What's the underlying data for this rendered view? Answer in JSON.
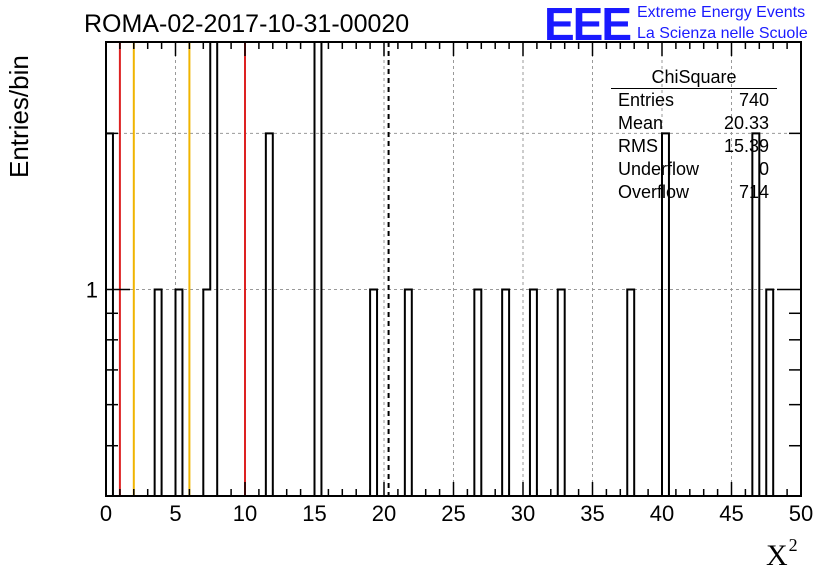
{
  "chart_data": {
    "type": "histogram",
    "title": "ROMA-02-2017-10-31-00020",
    "xlabel": "X",
    "xlabel_superscript": "2",
    "ylabel": "Entries/bin",
    "xlim": [
      0,
      50
    ],
    "ylim": [
      0.4,
      3
    ],
    "yscale": "log",
    "grid": true,
    "bin_width": 0.5,
    "x_ticks": [
      "0",
      "5",
      "10",
      "15",
      "20",
      "25",
      "30",
      "35",
      "40",
      "45",
      "50"
    ],
    "y_ticks": [
      "1"
    ],
    "bins": [
      {
        "x": 0.0,
        "y": 2
      },
      {
        "x": 3.5,
        "y": 1
      },
      {
        "x": 5.0,
        "y": 1
      },
      {
        "x": 7.0,
        "y": 1
      },
      {
        "x": 7.5,
        "y": 3
      },
      {
        "x": 11.5,
        "y": 2
      },
      {
        "x": 15.0,
        "y": 3
      },
      {
        "x": 19.0,
        "y": 1
      },
      {
        "x": 21.5,
        "y": 1
      },
      {
        "x": 26.5,
        "y": 1
      },
      {
        "x": 28.5,
        "y": 1
      },
      {
        "x": 30.5,
        "y": 1
      },
      {
        "x": 32.5,
        "y": 1
      },
      {
        "x": 37.5,
        "y": 1
      },
      {
        "x": 40.0,
        "y": 2
      },
      {
        "x": 46.5,
        "y": 2
      },
      {
        "x": 47.5,
        "y": 1
      }
    ],
    "vlines": [
      {
        "x": 1,
        "color": "#dd2222"
      },
      {
        "x": 2,
        "color": "#f0b400"
      },
      {
        "x": 6,
        "color": "#f0b400"
      },
      {
        "x": 10,
        "color": "#dd2222"
      },
      {
        "x": 20.33,
        "color": "#000000",
        "dashed": true
      }
    ],
    "stats_box": {
      "title": "ChiSquare",
      "rows": [
        {
          "label": "Entries",
          "value": "740"
        },
        {
          "label": "Mean",
          "value": "20.33"
        },
        {
          "label": "RMS",
          "value": "15.39"
        },
        {
          "label": "Underflow",
          "value": "0"
        },
        {
          "label": "Overflow",
          "value": "714"
        }
      ]
    }
  },
  "logo": {
    "text": "EEE",
    "line1": "Extreme Energy Events",
    "line2": "La Scienza nelle Scuole",
    "color": "#1a1aff"
  }
}
